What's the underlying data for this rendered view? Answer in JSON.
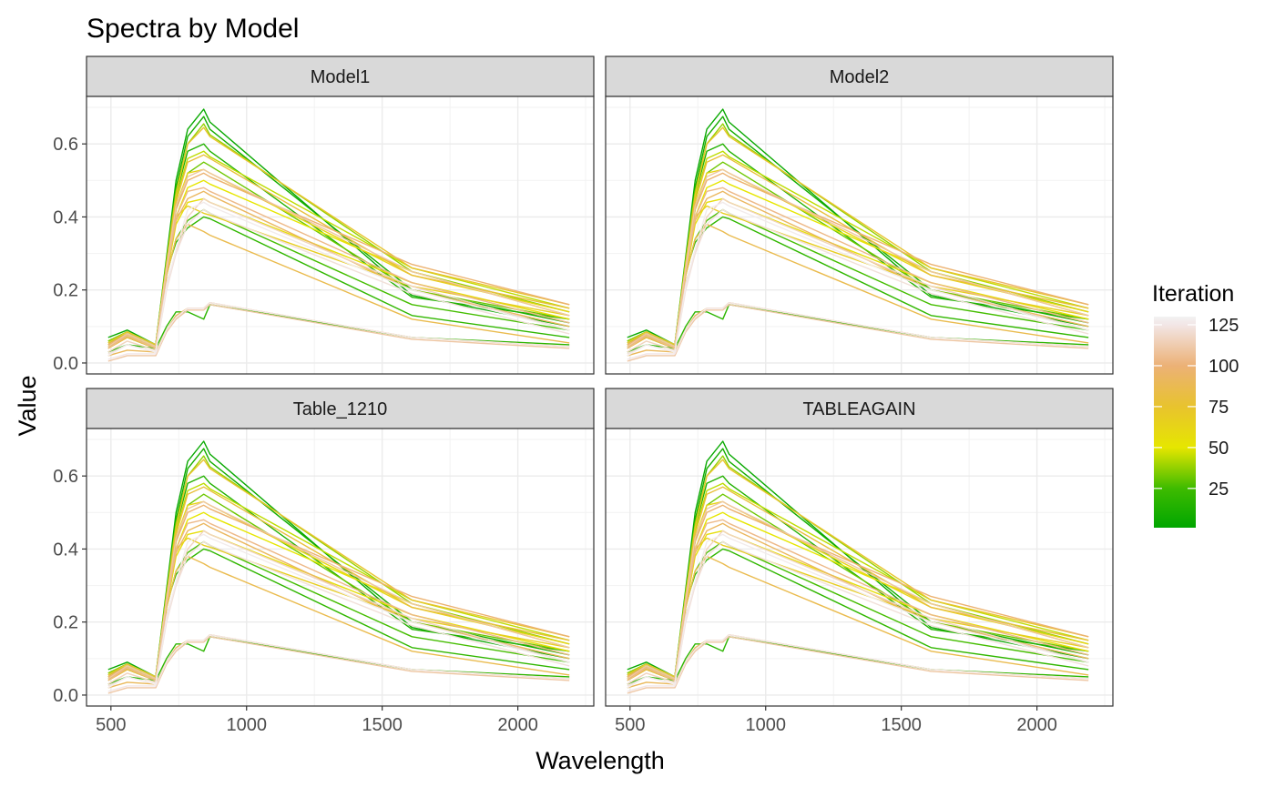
{
  "chart_data": {
    "type": "line",
    "title": "Spectra by Model",
    "xlabel": "Wavelength",
    "ylabel": "Value",
    "xlim": [
      410,
      2280
    ],
    "ylim": [
      -0.03,
      0.73
    ],
    "x_ticks": [
      500,
      1000,
      1500,
      2000
    ],
    "x_tick_labels": [
      "500",
      "1000",
      "1500",
      "2000"
    ],
    "y_ticks": [
      0,
      0.2,
      0.4,
      0.6
    ],
    "y_tick_labels": [
      "0.0",
      "0.2",
      "0.4",
      "0.6"
    ],
    "grid": true,
    "facets": [
      "Model1",
      "Model2",
      "Table_1210",
      "TABLEAGAIN"
    ],
    "legend": {
      "title": "Iteration",
      "placement": "right",
      "range": [
        1,
        130
      ],
      "breaks": [
        25,
        50,
        75,
        100,
        125
      ],
      "break_labels": [
        "25",
        "50",
        "75",
        "100",
        "125"
      ],
      "color_stops": [
        {
          "value": 1,
          "color": "#00a600"
        },
        {
          "value": 25,
          "color": "#3ebb00"
        },
        {
          "value": 50,
          "color": "#e6e600"
        },
        {
          "value": 75,
          "color": "#e8c32e"
        },
        {
          "value": 100,
          "color": "#ecb176"
        },
        {
          "value": 125,
          "color": "#f2e6e6"
        },
        {
          "value": 130,
          "color": "#f2f2f2"
        }
      ]
    },
    "x": [
      490,
      560,
      665,
      705,
      740,
      783,
      842,
      865,
      1610,
      2190
    ],
    "series": [
      {
        "iteration": 4,
        "values": [
          0.07,
          0.09,
          0.05,
          0.29,
          0.5,
          0.64,
          0.695,
          0.66,
          0.185,
          0.1
        ]
      },
      {
        "iteration": 9,
        "values": [
          0.06,
          0.085,
          0.05,
          0.28,
          0.48,
          0.62,
          0.675,
          0.64,
          0.2,
          0.11
        ]
      },
      {
        "iteration": 14,
        "values": [
          0.05,
          0.08,
          0.045,
          0.27,
          0.46,
          0.58,
          0.6,
          0.58,
          0.18,
          0.12
        ]
      },
      {
        "iteration": 20,
        "values": [
          0.045,
          0.07,
          0.04,
          0.25,
          0.33,
          0.37,
          0.4,
          0.395,
          0.13,
          0.07
        ]
      },
      {
        "iteration": 26,
        "values": [
          0.04,
          0.075,
          0.04,
          0.24,
          0.34,
          0.39,
          0.42,
          0.41,
          0.16,
          0.09
        ]
      },
      {
        "iteration": 32,
        "values": [
          0.055,
          0.08,
          0.045,
          0.26,
          0.42,
          0.52,
          0.55,
          0.54,
          0.2,
          0.12
        ]
      },
      {
        "iteration": 38,
        "values": [
          0.06,
          0.085,
          0.05,
          0.28,
          0.47,
          0.6,
          0.655,
          0.625,
          0.25,
          0.14
        ]
      },
      {
        "iteration": 44,
        "values": [
          0.05,
          0.08,
          0.045,
          0.27,
          0.45,
          0.56,
          0.58,
          0.565,
          0.26,
          0.15
        ]
      },
      {
        "iteration": 50,
        "values": [
          0.045,
          0.075,
          0.04,
          0.25,
          0.4,
          0.48,
          0.5,
          0.49,
          0.25,
          0.13
        ]
      },
      {
        "iteration": 56,
        "values": [
          0.04,
          0.07,
          0.04,
          0.24,
          0.38,
          0.44,
          0.45,
          0.44,
          0.22,
          0.12
        ]
      },
      {
        "iteration": 62,
        "values": [
          0.05,
          0.08,
          0.045,
          0.26,
          0.43,
          0.52,
          0.53,
          0.52,
          0.24,
          0.14
        ]
      },
      {
        "iteration": 68,
        "values": [
          0.045,
          0.075,
          0.04,
          0.25,
          0.4,
          0.43,
          0.41,
          0.405,
          0.21,
          0.13
        ]
      },
      {
        "iteration": 74,
        "values": [
          0.055,
          0.085,
          0.05,
          0.27,
          0.46,
          0.6,
          0.645,
          0.62,
          0.26,
          0.16
        ]
      },
      {
        "iteration": 80,
        "values": [
          0.05,
          0.08,
          0.045,
          0.26,
          0.44,
          0.55,
          0.57,
          0.56,
          0.24,
          0.15
        ]
      },
      {
        "iteration": 86,
        "values": [
          0.04,
          0.07,
          0.04,
          0.24,
          0.34,
          0.38,
          0.36,
          0.35,
          0.12,
          0.055
        ]
      },
      {
        "iteration": 92,
        "values": [
          0.045,
          0.075,
          0.04,
          0.25,
          0.39,
          0.45,
          0.47,
          0.46,
          0.2,
          0.1
        ]
      },
      {
        "iteration": 98,
        "values": [
          0.05,
          0.08,
          0.045,
          0.26,
          0.42,
          0.5,
          0.52,
          0.51,
          0.27,
          0.16
        ]
      },
      {
        "iteration": 104,
        "values": [
          0.04,
          0.075,
          0.04,
          0.25,
          0.4,
          0.47,
          0.48,
          0.47,
          0.22,
          0.11
        ]
      },
      {
        "iteration": 110,
        "values": [
          0.045,
          0.08,
          0.045,
          0.26,
          0.43,
          0.51,
          0.53,
          0.52,
          0.25,
          0.13
        ]
      },
      {
        "iteration": 116,
        "values": [
          0.03,
          0.06,
          0.035,
          0.22,
          0.3,
          0.4,
          0.45,
          0.44,
          0.21,
          0.09
        ]
      },
      {
        "iteration": 122,
        "values": [
          0.025,
          0.05,
          0.03,
          0.2,
          0.3,
          0.38,
          0.42,
          0.41,
          0.19,
          0.08
        ]
      },
      {
        "iteration": 127,
        "values": [
          0.02,
          0.05,
          0.03,
          0.21,
          0.31,
          0.42,
          0.44,
          0.43,
          0.2,
          0.09
        ]
      },
      {
        "iteration": 18,
        "values": [
          0.03,
          0.05,
          0.04,
          0.1,
          0.14,
          0.14,
          0.12,
          0.16,
          0.07,
          0.05
        ]
      },
      {
        "iteration": 90,
        "values": [
          0.02,
          0.035,
          0.03,
          0.09,
          0.13,
          0.15,
          0.15,
          0.165,
          0.07,
          0.045
        ]
      },
      {
        "iteration": 110,
        "values": [
          0.005,
          0.02,
          0.02,
          0.085,
          0.12,
          0.145,
          0.145,
          0.16,
          0.065,
          0.04
        ]
      },
      {
        "iteration": 125,
        "values": [
          0.01,
          0.025,
          0.025,
          0.09,
          0.125,
          0.15,
          0.15,
          0.165,
          0.07,
          0.045
        ]
      }
    ]
  }
}
